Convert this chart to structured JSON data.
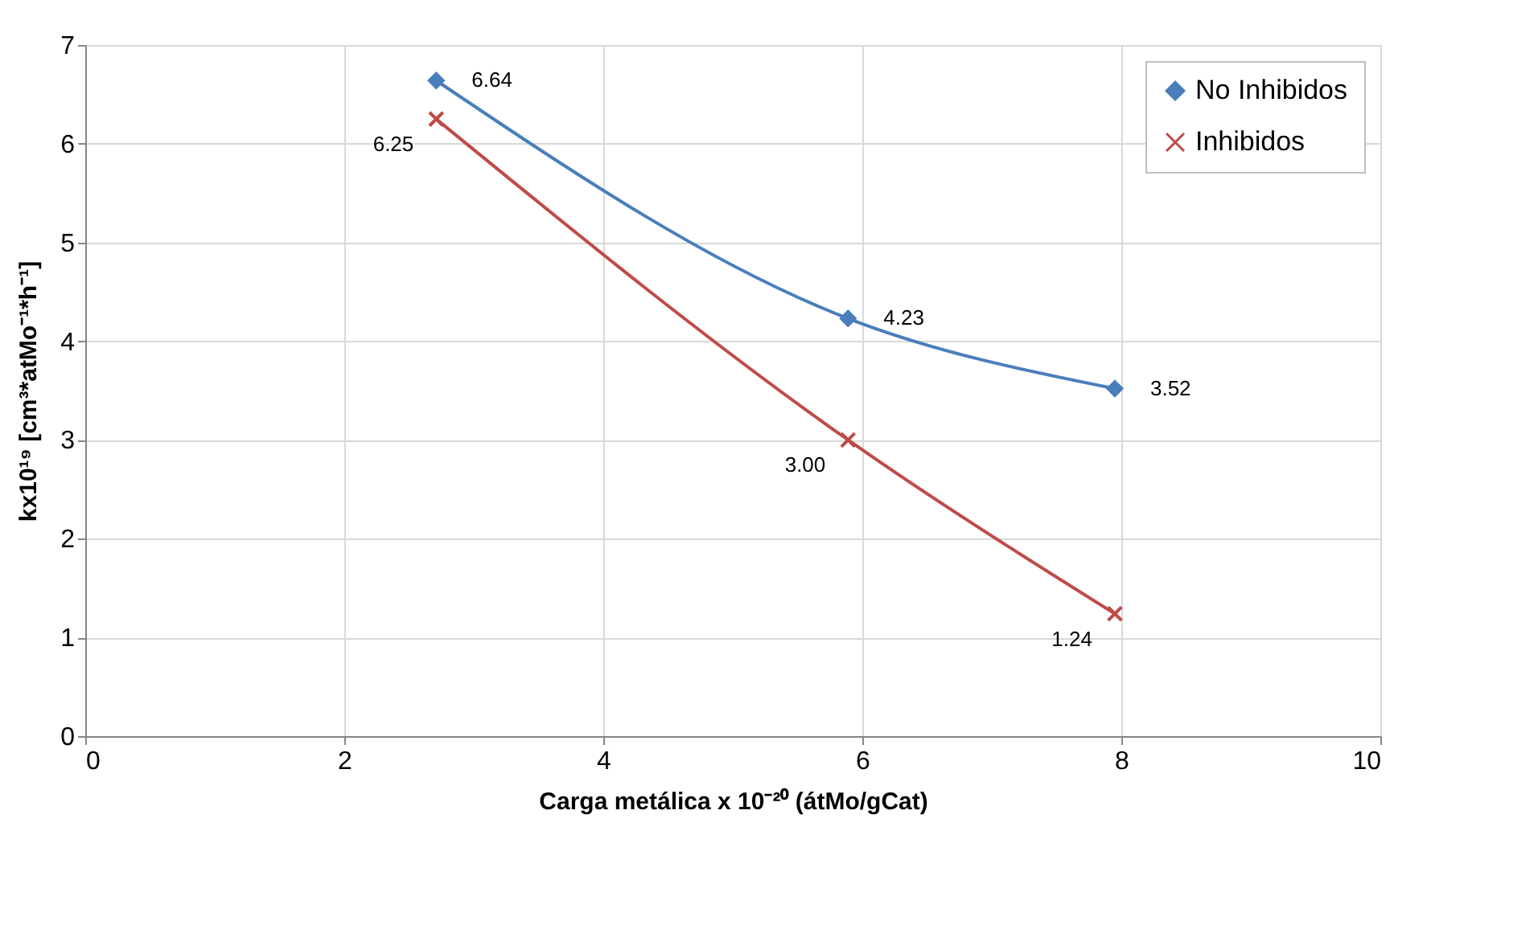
{
  "chart_data": {
    "type": "line",
    "xlabel": "Carga metálica x 10⁻²⁰ (átMo/gCat)",
    "ylabel": "kx10¹⁹ [cm³*atMo⁻¹*h⁻¹]",
    "series": [
      {
        "name": "No Inhibidos",
        "color": "#4a7ebb",
        "marker": "diamond",
        "x": [
          2.71,
          5.89,
          7.95
        ],
        "values": [
          6.64,
          4.23,
          3.52
        ],
        "value_labels": [
          "6.64",
          "4.23",
          "3.52"
        ]
      },
      {
        "name": "Inhibidos",
        "color": "#be4b48",
        "marker": "cross",
        "x": [
          2.71,
          5.89,
          7.95
        ],
        "values": [
          6.25,
          3.0,
          1.24
        ],
        "value_labels": [
          "6.25",
          "3.00",
          "1.24"
        ]
      }
    ],
    "xlim": [
      0,
      10
    ],
    "xticks": [
      0,
      2,
      4,
      6,
      8,
      10
    ],
    "ylim": [
      0,
      7
    ],
    "yticks": [
      0,
      1,
      2,
      3,
      4,
      5,
      6,
      7
    ],
    "grid": true,
    "legend": "top right",
    "line_style": "solid"
  }
}
